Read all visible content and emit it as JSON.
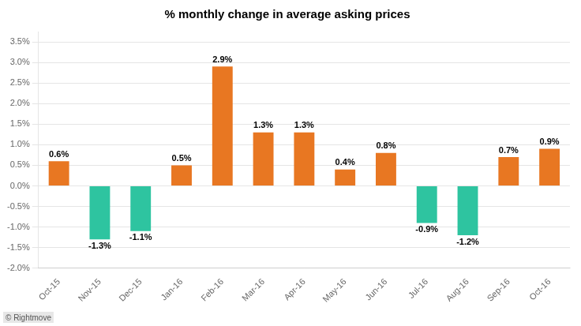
{
  "chart_data": {
    "type": "bar",
    "title": "% monthly change in average asking prices",
    "categories": [
      "Oct-15",
      "Nov-15",
      "Dec-15",
      "Jan-16",
      "Feb-16",
      "Mar-16",
      "Apr-16",
      "May-16",
      "Jun-16",
      "Jul-16",
      "Aug-16",
      "Sep-16",
      "Oct-16"
    ],
    "values": [
      0.6,
      -1.3,
      -1.1,
      0.5,
      2.9,
      1.3,
      1.3,
      0.4,
      0.8,
      -0.9,
      -1.2,
      0.7,
      0.9
    ],
    "value_labels": [
      "0.6%",
      "-1.3%",
      "-1.1%",
      "0.5%",
      "2.9%",
      "1.3%",
      "1.3%",
      "0.4%",
      "0.8%",
      "-0.9%",
      "-1.2%",
      "0.7%",
      "0.9%"
    ],
    "colors": [
      "#E87722",
      "#2EC4A0",
      "#2EC4A0",
      "#E87722",
      "#E87722",
      "#E87722",
      "#E87722",
      "#E87722",
      "#E87722",
      "#2EC4A0",
      "#2EC4A0",
      "#E87722",
      "#E87722"
    ],
    "ylim": [
      -2.0,
      3.75
    ],
    "yticks": [
      {
        "value": -2.0,
        "label": "-2.0%"
      },
      {
        "value": -1.5,
        "label": "-1.5%"
      },
      {
        "value": -1.0,
        "label": "-1.0%"
      },
      {
        "value": -0.5,
        "label": "-0.5%"
      },
      {
        "value": 0.0,
        "label": "0.0%"
      },
      {
        "value": 0.5,
        "label": "0.5%"
      },
      {
        "value": 1.0,
        "label": "1.0%"
      },
      {
        "value": 1.5,
        "label": "1.5%"
      },
      {
        "value": 2.0,
        "label": "2.0%"
      },
      {
        "value": 2.5,
        "label": "2.5%"
      },
      {
        "value": 3.0,
        "label": "3.0%"
      },
      {
        "value": 3.5,
        "label": "3.5%"
      }
    ],
    "grid": true,
    "data_labels": true,
    "annotations": [
      "© Rightmove"
    ]
  }
}
